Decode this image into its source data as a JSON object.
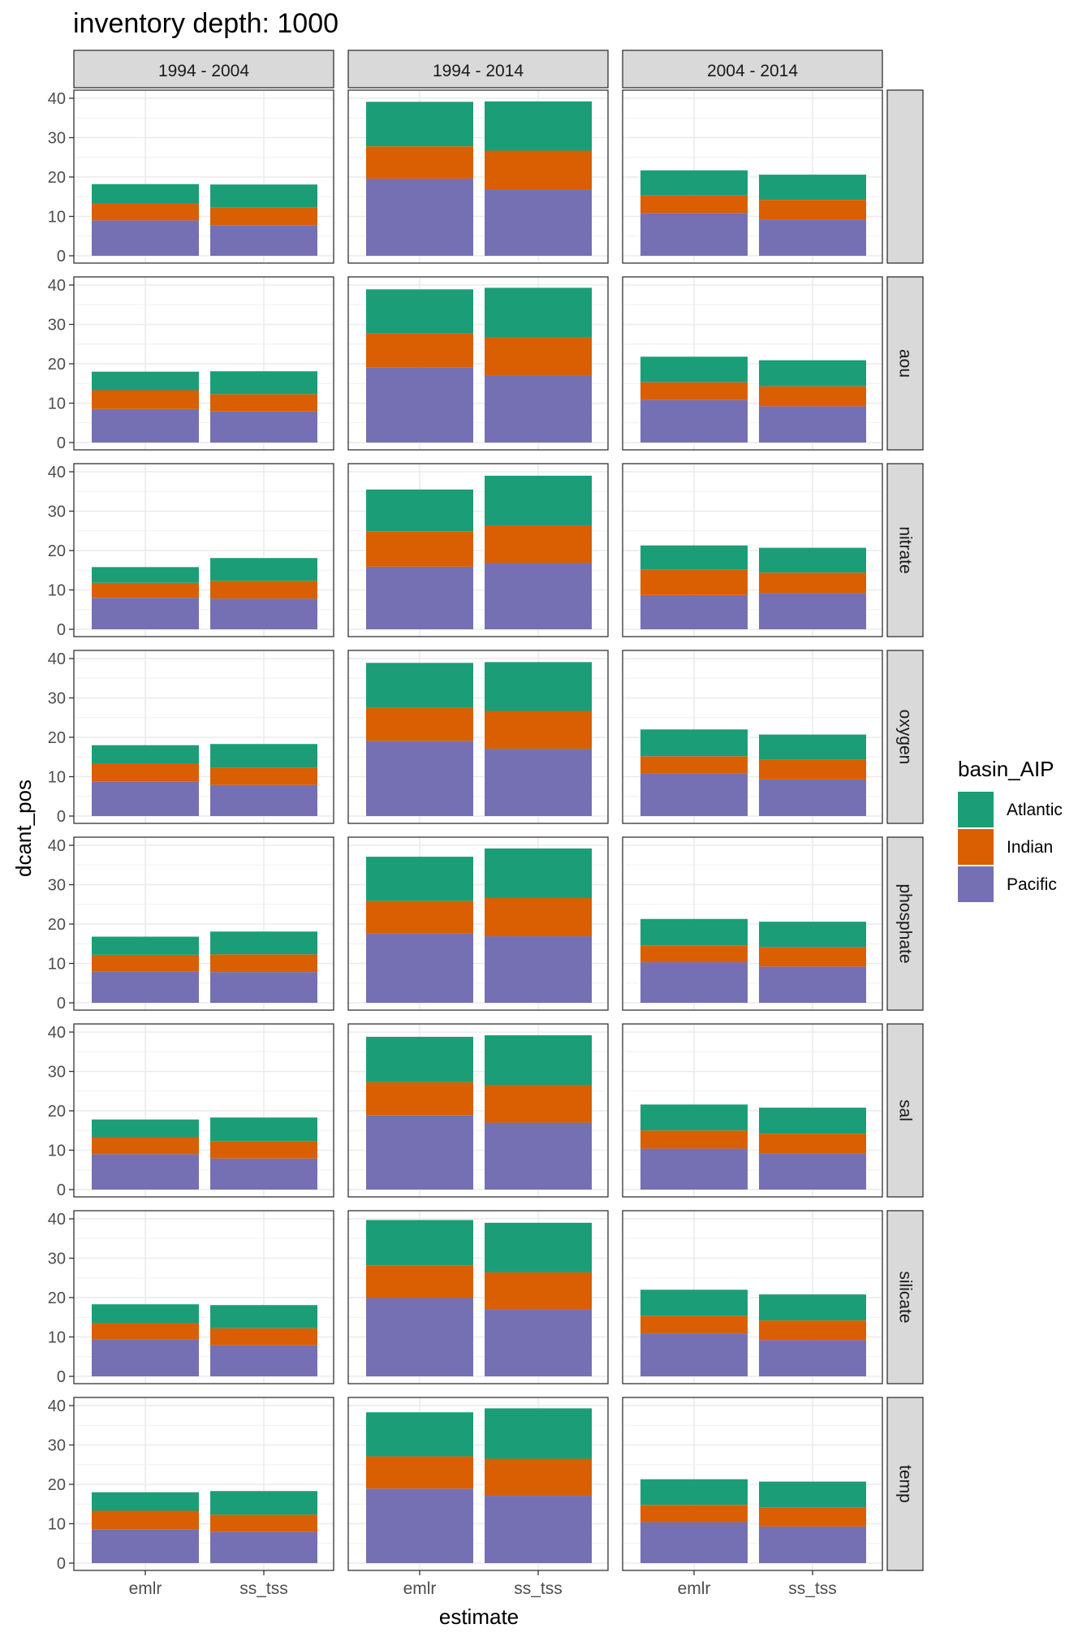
{
  "chart_data": {
    "type": "bar",
    "stacked": true,
    "title": "inventory depth: 1000",
    "xlabel": "estimate",
    "ylabel": "dcant_pos",
    "ylim": [
      0,
      40
    ],
    "yticks": [
      0,
      10,
      20,
      30,
      40
    ],
    "grid": true,
    "categories": [
      "emlr",
      "ss_tss"
    ],
    "col_facets": [
      "1994 - 2004",
      "1994 - 2014",
      "2004 - 2014"
    ],
    "row_facets": [
      "",
      "aou",
      "nitrate",
      "oxygen",
      "phosphate",
      "sal",
      "silicate",
      "temp"
    ],
    "legend": {
      "title": "basin_AIP",
      "position": "right",
      "entries": [
        {
          "name": "Atlantic",
          "color": "#1B9E77"
        },
        {
          "name": "Indian",
          "color": "#D95F02"
        },
        {
          "name": "Pacific",
          "color": "#7570B3"
        }
      ]
    },
    "facets": [
      [
        {
          "emlr": [
            9.0,
            4.4,
            4.8
          ],
          "ss_tss": [
            7.8,
            4.5,
            5.8
          ]
        },
        {
          "emlr": [
            19.6,
            8.2,
            11.3
          ],
          "ss_tss": [
            16.9,
            9.8,
            12.5
          ]
        },
        {
          "emlr": [
            10.9,
            4.4,
            6.4
          ],
          "ss_tss": [
            9.2,
            5.0,
            6.4
          ]
        }
      ],
      [
        {
          "emlr": [
            8.5,
            4.8,
            4.7
          ],
          "ss_tss": [
            7.9,
            4.4,
            5.8
          ]
        },
        {
          "emlr": [
            19.1,
            8.6,
            11.2
          ],
          "ss_tss": [
            17.0,
            9.8,
            12.5
          ]
        },
        {
          "emlr": [
            10.8,
            4.5,
            6.5
          ],
          "ss_tss": [
            9.2,
            5.1,
            6.6
          ]
        }
      ],
      [
        {
          "emlr": [
            8.0,
            3.8,
            4.0
          ],
          "ss_tss": [
            7.8,
            4.5,
            5.8
          ]
        },
        {
          "emlr": [
            15.9,
            9.0,
            10.6
          ],
          "ss_tss": [
            16.9,
            9.5,
            12.6
          ]
        },
        {
          "emlr": [
            8.7,
            6.5,
            6.1
          ],
          "ss_tss": [
            9.2,
            5.2,
            6.3
          ]
        }
      ],
      [
        {
          "emlr": [
            8.7,
            4.7,
            4.6
          ],
          "ss_tss": [
            7.9,
            4.4,
            6.0
          ]
        },
        {
          "emlr": [
            19.1,
            8.4,
            11.4
          ],
          "ss_tss": [
            17.1,
            9.6,
            12.4
          ]
        },
        {
          "emlr": [
            10.8,
            4.4,
            6.8
          ],
          "ss_tss": [
            9.3,
            5.0,
            6.4
          ]
        }
      ],
      [
        {
          "emlr": [
            7.9,
            4.3,
            4.6
          ],
          "ss_tss": [
            7.8,
            4.5,
            5.8
          ]
        },
        {
          "emlr": [
            17.6,
            8.3,
            11.2
          ],
          "ss_tss": [
            16.9,
            9.7,
            12.6
          ]
        },
        {
          "emlr": [
            10.3,
            4.3,
            6.7
          ],
          "ss_tss": [
            9.2,
            5.0,
            6.4
          ]
        }
      ],
      [
        {
          "emlr": [
            9.0,
            4.3,
            4.5
          ],
          "ss_tss": [
            7.9,
            4.4,
            6.0
          ]
        },
        {
          "emlr": [
            18.9,
            8.4,
            11.5
          ],
          "ss_tss": [
            17.0,
            9.6,
            12.6
          ]
        },
        {
          "emlr": [
            10.4,
            4.6,
            6.6
          ],
          "ss_tss": [
            9.2,
            5.0,
            6.6
          ]
        }
      ],
      [
        {
          "emlr": [
            9.3,
            4.2,
            4.8
          ],
          "ss_tss": [
            7.9,
            4.3,
            5.9
          ]
        },
        {
          "emlr": [
            19.9,
            8.3,
            11.5
          ],
          "ss_tss": [
            17.1,
            9.3,
            12.6
          ]
        },
        {
          "emlr": [
            10.9,
            4.5,
            6.6
          ],
          "ss_tss": [
            9.2,
            5.0,
            6.6
          ]
        }
      ],
      [
        {
          "emlr": [
            8.6,
            4.7,
            4.7
          ],
          "ss_tss": [
            7.9,
            4.4,
            6.0
          ]
        },
        {
          "emlr": [
            18.9,
            8.2,
            11.2
          ],
          "ss_tss": [
            17.1,
            9.4,
            12.8
          ]
        },
        {
          "emlr": [
            10.4,
            4.4,
            6.5
          ],
          "ss_tss": [
            9.3,
            4.9,
            6.5
          ]
        }
      ]
    ]
  }
}
